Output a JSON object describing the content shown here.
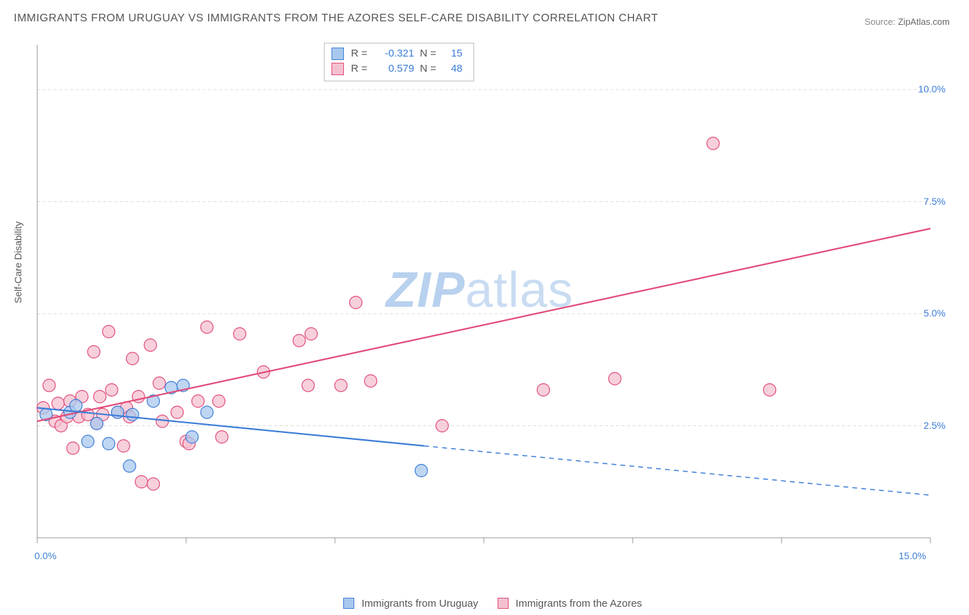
{
  "title": "IMMIGRANTS FROM URUGUAY VS IMMIGRANTS FROM THE AZORES SELF-CARE DISABILITY CORRELATION CHART",
  "source_label": "Source:",
  "source_value": "ZipAtlas.com",
  "watermark_a": "ZIP",
  "watermark_b": "atlas",
  "chart": {
    "type": "scatter",
    "ylabel": "Self-Care Disability",
    "background_color": "#ffffff",
    "grid_color": "#d9d9d9",
    "axis_color": "#9a9a9a",
    "tick_label_color": "#3b7dd8",
    "xlim": [
      0,
      15
    ],
    "ylim": [
      0,
      11
    ],
    "x_ticks": [
      0,
      2.5,
      5,
      7.5,
      10,
      12.5,
      15
    ],
    "x_tick_labels": {
      "0": "0.0%",
      "15": "15.0%"
    },
    "y_grid": [
      2.5,
      5.0,
      7.5,
      10.0
    ],
    "y_tick_labels": {
      "2.5": "2.5%",
      "5.0": "5.0%",
      "7.5": "7.5%",
      "10.0": "10.0%"
    },
    "label_fontsize": 14,
    "tick_fontsize": 14,
    "marker_radius": 9,
    "marker_stroke_width": 1.2,
    "line_width": 2.2
  },
  "series": {
    "uruguay": {
      "label": "Immigrants from Uruguay",
      "fill": "#a9c8ee",
      "stroke": "#3b7dd8",
      "R": "-0.321",
      "N": "15",
      "trend_solid": {
        "x1": 0,
        "y1": 2.9,
        "x2": 6.5,
        "y2": 2.05
      },
      "trend_dashed": {
        "x1": 6.5,
        "y1": 2.05,
        "x2": 15.0,
        "y2": 0.95
      },
      "points": [
        [
          0.15,
          2.75
        ],
        [
          0.55,
          2.8
        ],
        [
          0.65,
          2.95
        ],
        [
          0.85,
          2.15
        ],
        [
          1.0,
          2.55
        ],
        [
          1.2,
          2.1
        ],
        [
          1.35,
          2.8
        ],
        [
          1.6,
          2.75
        ],
        [
          1.55,
          1.6
        ],
        [
          1.95,
          3.05
        ],
        [
          2.25,
          3.35
        ],
        [
          2.45,
          3.4
        ],
        [
          2.6,
          2.25
        ],
        [
          2.85,
          2.8
        ],
        [
          6.45,
          1.5
        ]
      ]
    },
    "azores": {
      "label": "Immigrants from the Azores",
      "fill": "#f4c0cf",
      "stroke": "#e24a78",
      "R": "0.579",
      "N": "48",
      "trend_solid": {
        "x1": 0,
        "y1": 2.6,
        "x2": 15.0,
        "y2": 6.9
      },
      "trend_dashed": null,
      "points": [
        [
          0.1,
          2.9
        ],
        [
          0.2,
          3.4
        ],
        [
          0.3,
          2.6
        ],
        [
          0.35,
          3.0
        ],
        [
          0.4,
          2.5
        ],
        [
          0.5,
          2.7
        ],
        [
          0.55,
          3.05
        ],
        [
          0.6,
          2.0
        ],
        [
          0.7,
          2.7
        ],
        [
          0.75,
          3.15
        ],
        [
          0.85,
          2.75
        ],
        [
          0.95,
          4.15
        ],
        [
          1.0,
          2.55
        ],
        [
          1.05,
          3.15
        ],
        [
          1.1,
          2.75
        ],
        [
          1.2,
          4.6
        ],
        [
          1.25,
          3.3
        ],
        [
          1.35,
          2.8
        ],
        [
          1.45,
          2.05
        ],
        [
          1.5,
          2.9
        ],
        [
          1.55,
          2.7
        ],
        [
          1.6,
          4.0
        ],
        [
          1.7,
          3.15
        ],
        [
          1.75,
          1.25
        ],
        [
          1.9,
          4.3
        ],
        [
          1.95,
          1.2
        ],
        [
          2.05,
          3.45
        ],
        [
          2.1,
          2.6
        ],
        [
          2.35,
          2.8
        ],
        [
          2.5,
          2.15
        ],
        [
          2.55,
          2.1
        ],
        [
          2.7,
          3.05
        ],
        [
          2.85,
          4.7
        ],
        [
          3.05,
          3.05
        ],
        [
          3.1,
          2.25
        ],
        [
          3.4,
          4.55
        ],
        [
          3.8,
          3.7
        ],
        [
          4.4,
          4.4
        ],
        [
          4.55,
          3.4
        ],
        [
          4.6,
          4.55
        ],
        [
          5.1,
          3.4
        ],
        [
          5.35,
          5.25
        ],
        [
          5.6,
          3.5
        ],
        [
          6.8,
          2.5
        ],
        [
          8.5,
          3.3
        ],
        [
          9.7,
          3.55
        ],
        [
          11.35,
          8.8
        ],
        [
          12.3,
          3.3
        ]
      ]
    }
  },
  "stats_labels": {
    "R": "R =",
    "N": "N ="
  }
}
